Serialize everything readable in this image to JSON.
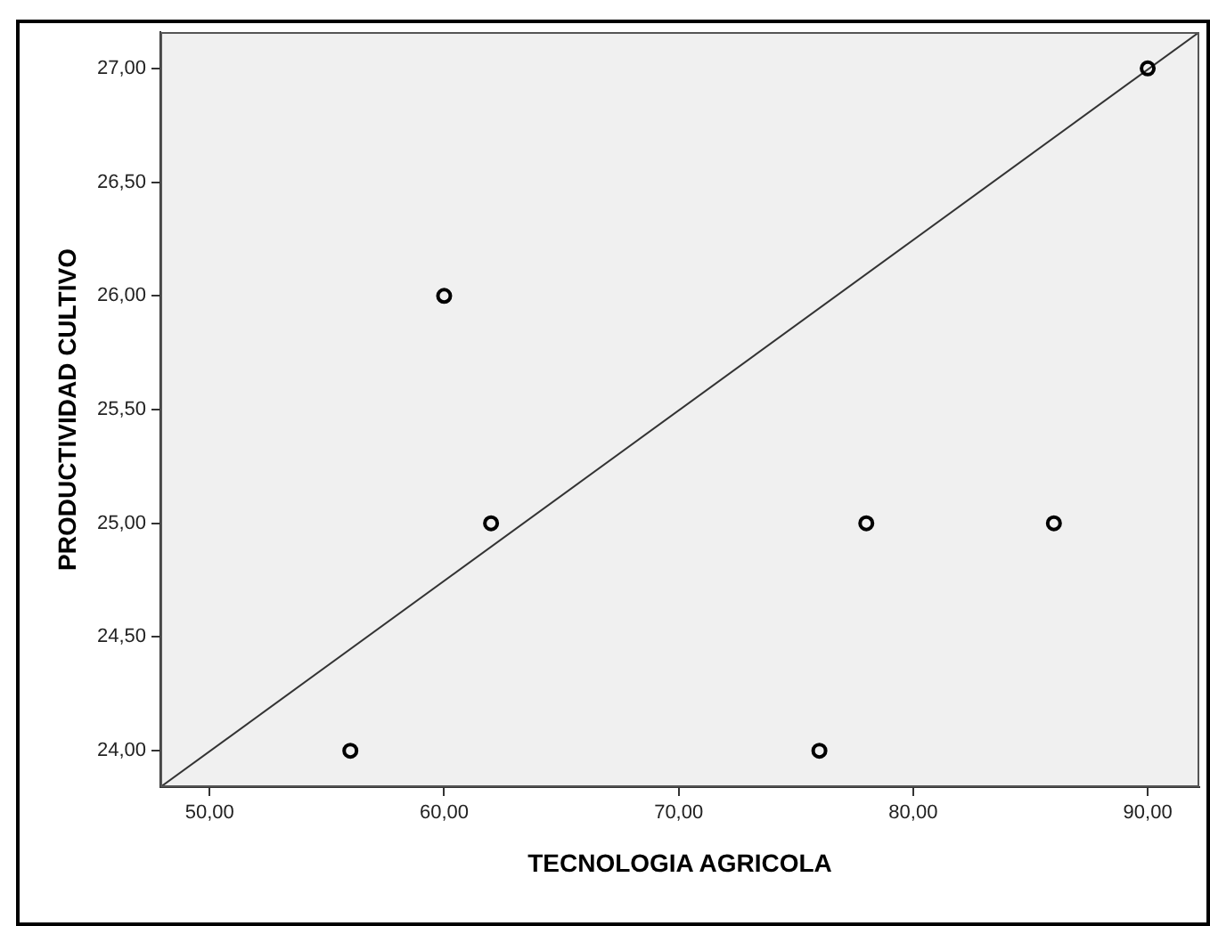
{
  "chart_data": {
    "type": "scatter",
    "xlabel": "TECNOLOGIA AGRICOLA",
    "ylabel": "PRODUCTIVIDAD CULTIVO",
    "xlim": [
      47.9,
      92.2
    ],
    "ylim": [
      23.84,
      27.16
    ],
    "xticks": [
      {
        "value": 50,
        "label": "50,00"
      },
      {
        "value": 60,
        "label": "60,00"
      },
      {
        "value": 70,
        "label": "70,00"
      },
      {
        "value": 80,
        "label": "80,00"
      },
      {
        "value": 90,
        "label": "90,00"
      }
    ],
    "yticks": [
      {
        "value": 24,
        "label": "24,00"
      },
      {
        "value": 24.5,
        "label": "24,50"
      },
      {
        "value": 25,
        "label": "25,00"
      },
      {
        "value": 25.5,
        "label": "25,50"
      },
      {
        "value": 26,
        "label": "26,00"
      },
      {
        "value": 26.5,
        "label": "26,50"
      },
      {
        "value": 27,
        "label": "27,00"
      }
    ],
    "grid": false,
    "legend": false,
    "marker": "circle",
    "series": [
      {
        "color": "#000000",
        "x": [
          56,
          60,
          62,
          76,
          78,
          86,
          90
        ],
        "values": [
          24,
          26,
          25,
          24,
          25,
          25,
          27
        ]
      },
      {
        "type": "line",
        "marker": "none",
        "color": "#333333",
        "x": [
          47.9,
          92.2
        ],
        "values": [
          23.84,
          27.16
        ]
      }
    ]
  }
}
